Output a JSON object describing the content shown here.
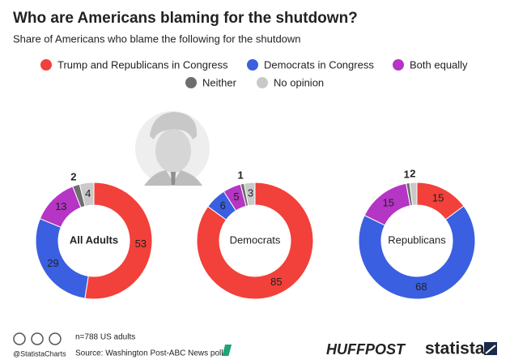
{
  "chart_data": {
    "type": "donut",
    "title": "Who are Americans blaming for the shutdown?",
    "subtitle": "Share of Americans who blame the following for the shutdown",
    "categories": [
      "Trump and Republicans in Congress",
      "Democrats in Congress",
      "Both equally",
      "Neither",
      "No opinion"
    ],
    "colors": [
      "#f2403a",
      "#3a5fe0",
      "#b535c4",
      "#6e6e6e",
      "#c9c9c9"
    ],
    "series": [
      {
        "name": "All Adults",
        "values": [
          53,
          29,
          13,
          2,
          4
        ]
      },
      {
        "name": "Democrats",
        "values": [
          85,
          6,
          5,
          1,
          3
        ]
      },
      {
        "name": "Republicans",
        "values": [
          15,
          68,
          15,
          1,
          2
        ]
      }
    ],
    "note": "n=788 US adults",
    "source": "Source: Washington Post-ABC News poll",
    "handle": "@StatistaCharts",
    "brand": "HUFFPOST",
    "logo": "statista"
  }
}
